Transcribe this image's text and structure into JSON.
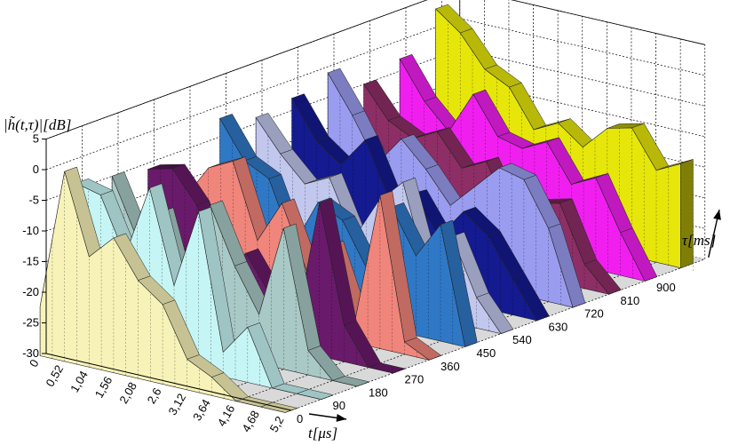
{
  "chart_data": {
    "type": "area",
    "title": "",
    "zlabel": "|h̃(t,τ)|[dB]",
    "xlabel": "t[μs]",
    "ylabel": "τ[ms]",
    "zlim": [
      -30,
      5
    ],
    "z_ticks": [
      "5",
      "0",
      "-5",
      "-10",
      "-15",
      "-20",
      "-25",
      "-30"
    ],
    "t_ticks": [
      "0",
      "0,52",
      "1,04",
      "1,56",
      "2,08",
      "2,6",
      "3,12",
      "3,64",
      "4,16",
      "4,68",
      "5,2"
    ],
    "tau_ticks": [
      "0",
      "90",
      "180",
      "270",
      "360",
      "450",
      "540",
      "630",
      "720",
      "810",
      "900"
    ],
    "grid": true,
    "t_values": [
      0,
      0.52,
      1.04,
      1.56,
      2.08,
      2.6,
      3.12,
      3.64,
      4.16,
      4.68,
      5.2
    ],
    "series": [
      {
        "tau": 0,
        "color": "#f7f3b8",
        "values": [
          -22,
          1,
          -12,
          -8,
          -14,
          -17,
          -25,
          -27,
          -30,
          -30,
          -30
        ]
      },
      {
        "tau": 90,
        "color": "#c6f5f5",
        "values": [
          -4,
          -5,
          -14,
          -2,
          -17,
          -4,
          -26,
          -21,
          -30,
          -30,
          -30
        ]
      },
      {
        "tau": 180,
        "color": "#a9c9c6",
        "values": [
          -5,
          -14,
          -9,
          -23,
          -6,
          -15,
          -22,
          -7,
          -26,
          -30,
          -30
        ]
      },
      {
        "tau": 270,
        "color": "#6a1a6a",
        "values": [
          -6,
          -5,
          -10,
          -20,
          -16,
          -22,
          -27,
          -5,
          -24,
          -30,
          -30
        ]
      },
      {
        "tau": 360,
        "color": "#f0857b",
        "values": [
          -13,
          -7,
          -5,
          -17,
          -10,
          -20,
          -15,
          -26,
          -5,
          -28,
          -30
        ]
      },
      {
        "tau": 450,
        "color": "#2f78c6",
        "values": [
          -2,
          -8,
          -10,
          -20,
          -12,
          -14,
          -21,
          -10,
          -17,
          -11,
          -30
        ]
      },
      {
        "tau": 540,
        "color": "#c2c7ee",
        "values": [
          -4,
          -9,
          -13,
          -11,
          -20,
          -13,
          -9,
          -23,
          -16,
          -25,
          -30
        ]
      },
      {
        "tau": 630,
        "color": "#141a90",
        "values": [
          -3,
          -9,
          -12,
          -7,
          -16,
          -14,
          -20,
          -15,
          -18,
          -24,
          -30
        ]
      },
      {
        "tau": 720,
        "color": "#9a9cf0",
        "values": [
          -1,
          -7,
          -14,
          -9,
          -13,
          -18,
          -14,
          -10,
          -11,
          -18,
          -30
        ]
      },
      {
        "tau": 810,
        "color": "#8e2e66",
        "values": [
          -5,
          -10,
          -12,
          -10,
          -15,
          -13,
          -21,
          -18,
          -17,
          -26,
          -30
        ]
      },
      {
        "tau": 900,
        "color": "#f01ff0",
        "values": [
          -3,
          -9,
          -13,
          -6,
          -12,
          -13,
          -11,
          -17,
          -15,
          -23,
          -30
        ]
      },
      {
        "tau": 990,
        "color": "#e6e60a",
        "values": [
          3,
          0,
          -5,
          -7,
          -13,
          -11,
          -14,
          -10,
          -9,
          -15,
          -13
        ]
      }
    ]
  }
}
